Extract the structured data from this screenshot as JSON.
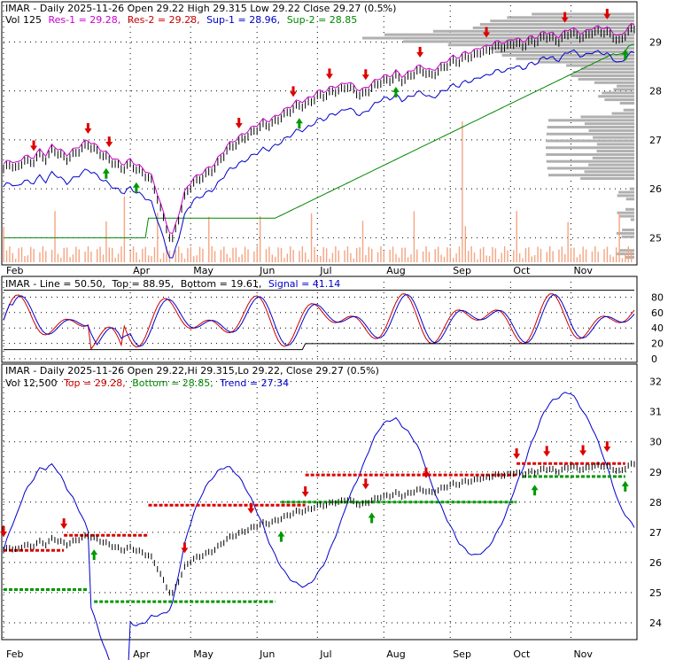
{
  "chart_data": [
    {
      "type": "line",
      "panel": "price",
      "ticker": "IMAR",
      "header": "IMAR - Daily 2025-11-26 Open 29.22  High 29.315  Low 29.22  Close 29.27 (0.5%)",
      "header_parts": {
        "prefix": "IMAR - Daily 2025-11-26",
        "open_label": "Open",
        "open": "29.22",
        "high_label": "High",
        "high": "29.315",
        "low_label": "Low",
        "low": "29.22",
        "close_label": "Close",
        "close": "29.27",
        "change": "(0.5%)"
      },
      "legend": [
        {
          "label": "Vol 125",
          "color": "#000000"
        },
        {
          "label": "Res-1 = 29.28,",
          "color": "#cc00cc"
        },
        {
          "label": "Res-2 = 29.28,",
          "color": "#cc0000"
        },
        {
          "label": "Sup-1 = 28.96,",
          "color": "#0000cc"
        },
        {
          "label": "Sup-2 = 28.85",
          "color": "#008800"
        }
      ],
      "y_ticks": [
        "29",
        "28",
        "27",
        "26",
        "25"
      ],
      "ylim": [
        24.5,
        29.75
      ],
      "x_months": [
        "Feb",
        "Apr",
        "May",
        "Jun",
        "Jul",
        "Aug",
        "Sep",
        "Oct",
        "Nov"
      ],
      "x_month_index": [
        0,
        42,
        62,
        84,
        104,
        126,
        148,
        168,
        188
      ],
      "n_days": 210,
      "close_series": [
        26.4,
        26.5,
        26.4,
        26.6,
        26.5,
        26.7,
        26.6,
        26.8,
        26.7,
        26.6,
        26.7,
        26.8,
        26.9,
        26.8,
        26.7,
        26.6,
        26.5,
        26.4,
        26.5,
        26.4,
        26.3,
        26.2,
        25.8,
        25.3,
        24.9,
        25.4,
        25.9,
        26.1,
        26.2,
        26.3,
        26.4,
        26.6,
        26.8,
        26.9,
        27.0,
        27.1,
        27.2,
        27.3,
        27.3,
        27.4,
        27.5,
        27.6,
        27.7,
        27.7,
        27.8,
        27.9,
        27.9,
        28.0,
        28.0,
        28.1,
        28.0,
        27.9,
        28.0,
        28.1,
        28.2,
        28.2,
        28.3,
        28.2,
        28.3,
        28.4,
        28.4,
        28.3,
        28.4,
        28.5,
        28.6,
        28.6,
        28.7,
        28.7,
        28.8,
        28.8,
        28.9,
        28.9,
        28.9,
        29.0,
        28.9,
        29.0,
        29.0,
        29.1,
        29.1,
        29.0,
        29.1,
        29.2,
        29.1,
        29.1,
        29.2,
        29.2,
        29.2,
        29.1,
        29.0,
        29.2,
        29.27
      ],
      "res1_label": "Res-1",
      "res2_label": "Res-2",
      "sup1_label": "Sup-1",
      "sup2_label": "Sup-2",
      "colors": {
        "res1": "#cc00cc",
        "res2": "#cc0000",
        "sup1": "#0000cc",
        "sup2": "#008800",
        "volume": "#f4a582",
        "profile": "#b0b0b0",
        "up_arrow": "#009900",
        "down_arrow": "#dd0000"
      }
    },
    {
      "type": "line",
      "panel": "stochastic",
      "header": {
        "name": "IMAR - Line = 50.50,",
        "top": "Top = 88.95,",
        "bottom": "Bottom = 19.61,",
        "signal": "Signal = 41.14"
      },
      "y_ticks": [
        "80",
        "60",
        "40",
        "20",
        "0"
      ],
      "ylim": [
        0,
        100
      ],
      "colors": {
        "line": "#0000cc",
        "signal": "#cc0000",
        "band": "#000000"
      }
    },
    {
      "type": "line",
      "panel": "trend",
      "header": "IMAR - Daily 2025-11-26 Open 29.22,Hi 29.315,Lo 29.22, Close 29.27 (0.5%)",
      "legend": [
        {
          "label": "Vol 12,500",
          "color": "#000000"
        },
        {
          "label": "Top = 29.28,",
          "color": "#cc0000"
        },
        {
          "label": "Bottom = 28.85,",
          "color": "#008800"
        },
        {
          "label": "Trend = 27.34",
          "color": "#0000cc"
        }
      ],
      "y_ticks": [
        "32",
        "31",
        "30",
        "29",
        "28",
        "27",
        "26",
        "25",
        "24"
      ],
      "ylim": [
        23.5,
        32.4
      ],
      "x_months": [
        "Feb",
        "Apr",
        "May",
        "Jun",
        "Jul",
        "Aug",
        "Sep",
        "Oct",
        "Nov"
      ],
      "colors": {
        "top": "#dd0000",
        "bottom": "#009900",
        "trend": "#0000cc"
      }
    }
  ]
}
